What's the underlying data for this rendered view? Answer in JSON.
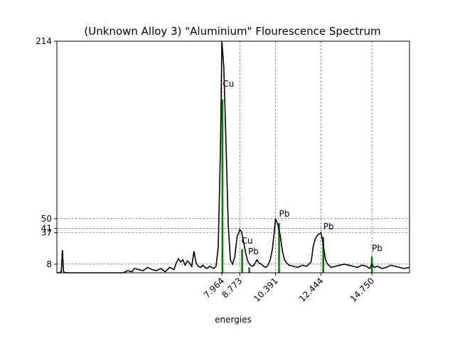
{
  "chart_data": {
    "type": "line",
    "title": "(Unknown Alloy 3) \"Aluminium\" Flourescence Spectrum",
    "xlabel": "energies",
    "ylabel": "",
    "xlim": [
      0.5,
      16.45
    ],
    "ylim": [
      0,
      214
    ],
    "grid": "dashed red reference lines at labeled ticks",
    "x_ticks": [
      {
        "value": 7.964,
        "label": "7.964"
      },
      {
        "value": 8.773,
        "label": "8.773"
      },
      {
        "value": 10.391,
        "label": "10.391"
      },
      {
        "value": 12.444,
        "label": "12.444"
      },
      {
        "value": 14.75,
        "label": "14.750"
      }
    ],
    "y_ticks": [
      {
        "value": 8,
        "label": "8"
      },
      {
        "value": 37,
        "label": "37"
      },
      {
        "value": 41,
        "label": "41"
      },
      {
        "value": 50,
        "label": "50"
      },
      {
        "value": 214,
        "label": "214"
      }
    ],
    "colors": {
      "spectrum": "#000000",
      "peak_lines": "#008000",
      "grid": "#ff0000"
    },
    "series": [
      {
        "x": [
          0.5,
          0.6,
          0.7,
          0.75,
          0.8,
          0.9,
          1.0,
          1.5,
          2.0,
          2.5,
          3.0,
          3.5,
          3.7,
          3.9,
          4.0,
          4.2,
          4.4,
          4.6,
          4.8,
          5.0,
          5.2,
          5.4,
          5.6,
          5.8,
          5.9,
          6.0,
          6.1,
          6.2,
          6.3,
          6.4,
          6.5,
          6.6,
          6.7,
          6.8,
          6.9,
          7.0,
          7.1,
          7.2,
          7.3,
          7.4,
          7.5,
          7.6,
          7.7,
          7.8,
          7.9,
          7.964,
          8.05,
          8.15,
          8.25,
          8.35,
          8.45,
          8.55,
          8.65,
          8.773,
          8.85,
          8.95,
          9.05,
          9.15,
          9.25,
          9.35,
          9.45,
          9.55,
          9.65,
          9.75,
          9.85,
          9.95,
          10.05,
          10.15,
          10.25,
          10.391,
          10.5,
          10.6,
          10.7,
          10.8,
          10.9,
          11.0,
          11.2,
          11.4,
          11.6,
          11.8,
          12.0,
          12.1,
          12.2,
          12.3,
          12.444,
          12.55,
          12.65,
          12.75,
          12.9,
          13.1,
          13.3,
          13.5,
          13.7,
          13.9,
          14.1,
          14.3,
          14.5,
          14.65,
          14.75,
          14.85,
          15.0,
          15.2,
          15.4,
          15.6,
          15.8,
          16.0,
          16.2,
          16.45
        ],
        "y": [
          0,
          0,
          1,
          21,
          1,
          0,
          0,
          0,
          0,
          0,
          0,
          0,
          2,
          1,
          4,
          3,
          2,
          5,
          3,
          2,
          4,
          1,
          5,
          3,
          9,
          13,
          10,
          12,
          7,
          11,
          9,
          6,
          20,
          9,
          6,
          5,
          7,
          5,
          4,
          6,
          5,
          4,
          6,
          24,
          115,
          214,
          190,
          120,
          45,
          12,
          8,
          15,
          33,
          40,
          38,
          28,
          17,
          10,
          7,
          6,
          8,
          12,
          9,
          8,
          6,
          5,
          7,
          12,
          22,
          50,
          44,
          35,
          20,
          12,
          9,
          7,
          6,
          5,
          7,
          6,
          10,
          25,
          32,
          35,
          37,
          26,
          12,
          8,
          5,
          6,
          7,
          8,
          7,
          6,
          5,
          7,
          6,
          4,
          8,
          5,
          6,
          4,
          5,
          7,
          6,
          5,
          4,
          5
        ]
      }
    ],
    "peak_lines": [
      {
        "x": 7.99,
        "value": 160
      },
      {
        "x": 8.88,
        "value": 22
      },
      {
        "x": 9.2,
        "value": 5
      },
      {
        "x": 10.55,
        "value": 46
      },
      {
        "x": 12.55,
        "value": 33
      },
      {
        "x": 14.75,
        "value": 15
      }
    ],
    "annotations": [
      {
        "x": 8.0,
        "y": 172,
        "text": "Cu"
      },
      {
        "x": 8.85,
        "y": 27,
        "text": "Cu"
      },
      {
        "x": 9.15,
        "y": 17,
        "text": "Pb"
      },
      {
        "x": 10.55,
        "y": 52,
        "text": "Pb"
      },
      {
        "x": 12.55,
        "y": 40,
        "text": "Pb"
      },
      {
        "x": 14.75,
        "y": 20,
        "text": "Pb"
      }
    ]
  }
}
